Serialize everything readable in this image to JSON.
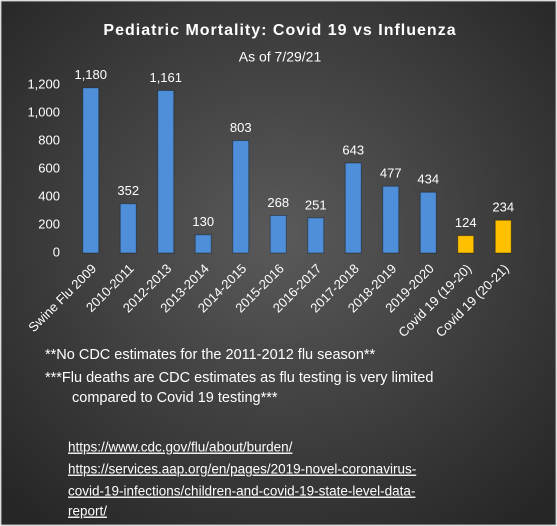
{
  "chart_data": {
    "type": "bar",
    "title": "Pediatric Mortality: Covid 19 vs Influenza",
    "subtitle": "As of 7/29/21",
    "categories": [
      "Swine Flu 2009",
      "2010-2011",
      "2012-2013",
      "2013-2014",
      "2014-2015",
      "2015-2016",
      "2016-2017",
      "2017-2018",
      "2018-2019",
      "2019-2020",
      "Covid 19 (19-20)",
      "Covid 19 (20-21)"
    ],
    "values": [
      1180,
      352,
      1161,
      130,
      803,
      268,
      251,
      643,
      477,
      434,
      124,
      234
    ],
    "value_labels": [
      "1,180",
      "352",
      "1,161",
      "130",
      "803",
      "268",
      "251",
      "643",
      "477",
      "434",
      "124",
      "234"
    ],
    "colors": [
      "#4f8fd9",
      "#4f8fd9",
      "#4f8fd9",
      "#4f8fd9",
      "#4f8fd9",
      "#4f8fd9",
      "#4f8fd9",
      "#4f8fd9",
      "#4f8fd9",
      "#4f8fd9",
      "#ffc000",
      "#ffc000"
    ],
    "ylim": [
      0,
      1400
    ],
    "yticks": [
      0,
      200,
      400,
      600,
      800,
      {
        "value": 1000,
        "label": "1,000"
      },
      {
        "value": 1200,
        "label": "1,200"
      }
    ],
    "grid": false,
    "notes": [
      "**No CDC estimates for the 2011-2012 flu season**",
      "***Flu deaths are CDC estimates as flu testing is very limited",
      "compared to Covid 19 testing***"
    ],
    "links": [
      "https://www.cdc.gov/flu/about/burden/",
      "https://services.aap.org/en/pages/2019-novel-coronavirus-",
      "covid-19-infections/children-and-covid-19-state-level-data-",
      "report/"
    ]
  }
}
